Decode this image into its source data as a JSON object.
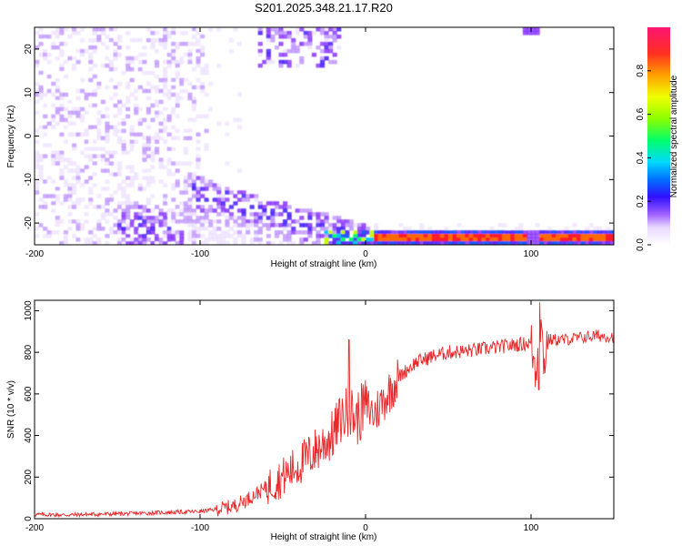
{
  "title": "S201.2025.348.21.17.R20",
  "chart_data": [
    {
      "type": "heatmap",
      "xlabel": "Height of straight line (km)",
      "ylabel": "Frequency (Hz)",
      "xlim": [
        -200,
        150
      ],
      "ylim": [
        -25,
        25
      ],
      "xticks": [
        -200,
        -100,
        0,
        100
      ],
      "yticks": [
        -20,
        -10,
        0,
        10,
        20
      ],
      "colorbar": {
        "label": "Normalized spectral amplitude",
        "range": [
          0,
          1
        ],
        "ticks": [
          0.0,
          0.2,
          0.4,
          0.6,
          0.8
        ],
        "tick_labels": [
          "0.0",
          "0.2",
          "0.4",
          "0.6",
          "0.8"
        ]
      },
      "colormap": [
        "#ffffff",
        "#e8d8ff",
        "#b07cff",
        "#7a1cff",
        "#3a10ff",
        "#0a4cff",
        "#00c8ff",
        "#00ff60",
        "#c8ff00",
        "#ffd200",
        "#ff6a00",
        "#ff1c2c",
        "#ff1473"
      ],
      "features": [
        {
          "name": "strong band near -23 Hz",
          "x_range": [
            10,
            150
          ],
          "freq": -23.5,
          "amplitude": 0.9
        },
        {
          "name": "rising ridge",
          "x_range": [
            -110,
            0
          ],
          "freq_range": [
            -12,
            -24
          ],
          "amplitude": 0.35
        },
        {
          "name": "diffuse scatter",
          "x_range": [
            -200,
            -100
          ],
          "freq_range": [
            -25,
            25
          ],
          "amplitude": 0.15
        },
        {
          "name": "upper blob",
          "x_range": [
            -65,
            -15
          ],
          "freq_range": [
            18,
            25
          ],
          "amplitude": 0.3
        }
      ]
    },
    {
      "type": "line",
      "xlabel": "Height of straight line (km)",
      "ylabel": "SNR (10 * v/v)",
      "xlim": [
        -200,
        150
      ],
      "ylim": [
        0,
        1050
      ],
      "xticks": [
        -200,
        -100,
        0,
        100
      ],
      "yticks": [
        0,
        200,
        400,
        600,
        800,
        1000
      ],
      "color": "#e8282a",
      "series": [
        {
          "x": [
            -200,
            -180,
            -160,
            -140,
            -120,
            -100,
            -90,
            -80,
            -70,
            -60,
            -50,
            -40,
            -30,
            -20,
            -15,
            -10,
            -5,
            0,
            5,
            10,
            15,
            20,
            30,
            40,
            50,
            60,
            70,
            80,
            90,
            100,
            103,
            105,
            108,
            110,
            120,
            130,
            140,
            150
          ],
          "values": [
            20,
            18,
            22,
            25,
            30,
            35,
            45,
            60,
            100,
            150,
            200,
            260,
            330,
            400,
            480,
            520,
            480,
            550,
            500,
            560,
            620,
            680,
            750,
            780,
            800,
            805,
            815,
            825,
            835,
            845,
            700,
            1000,
            750,
            860,
            860,
            870,
            880,
            875
          ]
        }
      ],
      "annotations": [
        {
          "x": -10,
          "y": 860,
          "note": "spike"
        },
        {
          "x": 105,
          "y": 1040,
          "note": "spike"
        },
        {
          "x": 105,
          "y": 620,
          "note": "dip"
        }
      ]
    }
  ]
}
